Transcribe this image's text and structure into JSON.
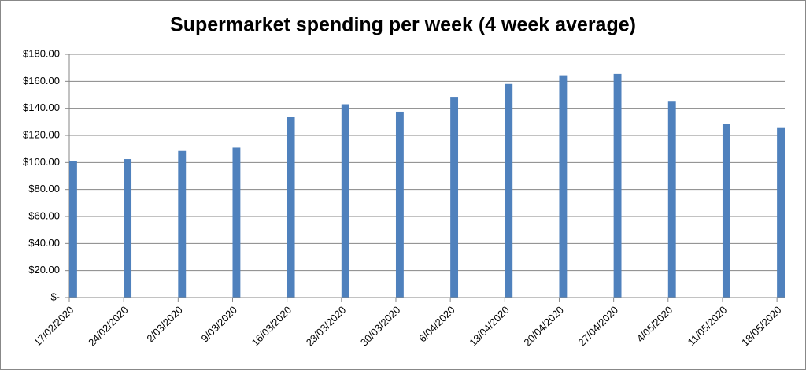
{
  "chart_data": {
    "type": "bar",
    "title": "Supermarket spending per week (4 week average)",
    "categories": [
      "17/02/2020",
      "24/02/2020",
      "2/03/2020",
      "9/03/2020",
      "16/03/2020",
      "23/03/2020",
      "30/03/2020",
      "6/04/2020",
      "13/04/2020",
      "20/04/2020",
      "27/04/2020",
      "4/05/2020",
      "11/05/2020",
      "18/05/2020"
    ],
    "values": [
      101,
      102.5,
      108.5,
      111,
      133.5,
      143,
      137.5,
      148.5,
      158,
      164.5,
      165.5,
      145.5,
      128.5,
      126
    ],
    "color": "#4f81bd",
    "ylim": [
      0,
      180
    ],
    "yticks": [
      {
        "value": 0,
        "label": "$-"
      },
      {
        "value": 20,
        "label": "$20.00"
      },
      {
        "value": 40,
        "label": "$40.00"
      },
      {
        "value": 60,
        "label": "$60.00"
      },
      {
        "value": 80,
        "label": "$80.00"
      },
      {
        "value": 100,
        "label": "$100.00"
      },
      {
        "value": 120,
        "label": "$120.00"
      },
      {
        "value": 140,
        "label": "$140.00"
      },
      {
        "value": 160,
        "label": "$160.00"
      },
      {
        "value": 180,
        "label": "$180.00"
      }
    ],
    "grid": true
  }
}
